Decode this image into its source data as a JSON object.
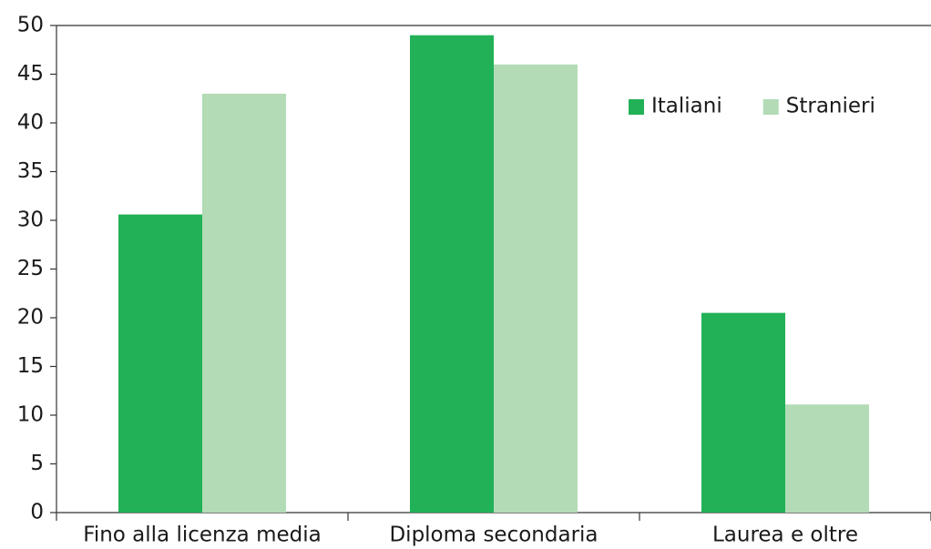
{
  "chart_data": {
    "type": "bar",
    "categories": [
      "Fino alla licenza media",
      "Diploma secondaria",
      "Laurea e oltre"
    ],
    "series": [
      {
        "name": "Italiani",
        "color": "#22b157",
        "values": [
          30.6,
          49,
          20.5
        ]
      },
      {
        "name": "Stranieri",
        "color": "#b2dbb6",
        "values": [
          43,
          46,
          11.1
        ]
      }
    ],
    "ylim": [
      0,
      50
    ],
    "yticks": [
      0,
      5,
      10,
      15,
      20,
      25,
      30,
      35,
      40,
      45,
      50
    ],
    "grid": false,
    "legend": "top-right"
  }
}
